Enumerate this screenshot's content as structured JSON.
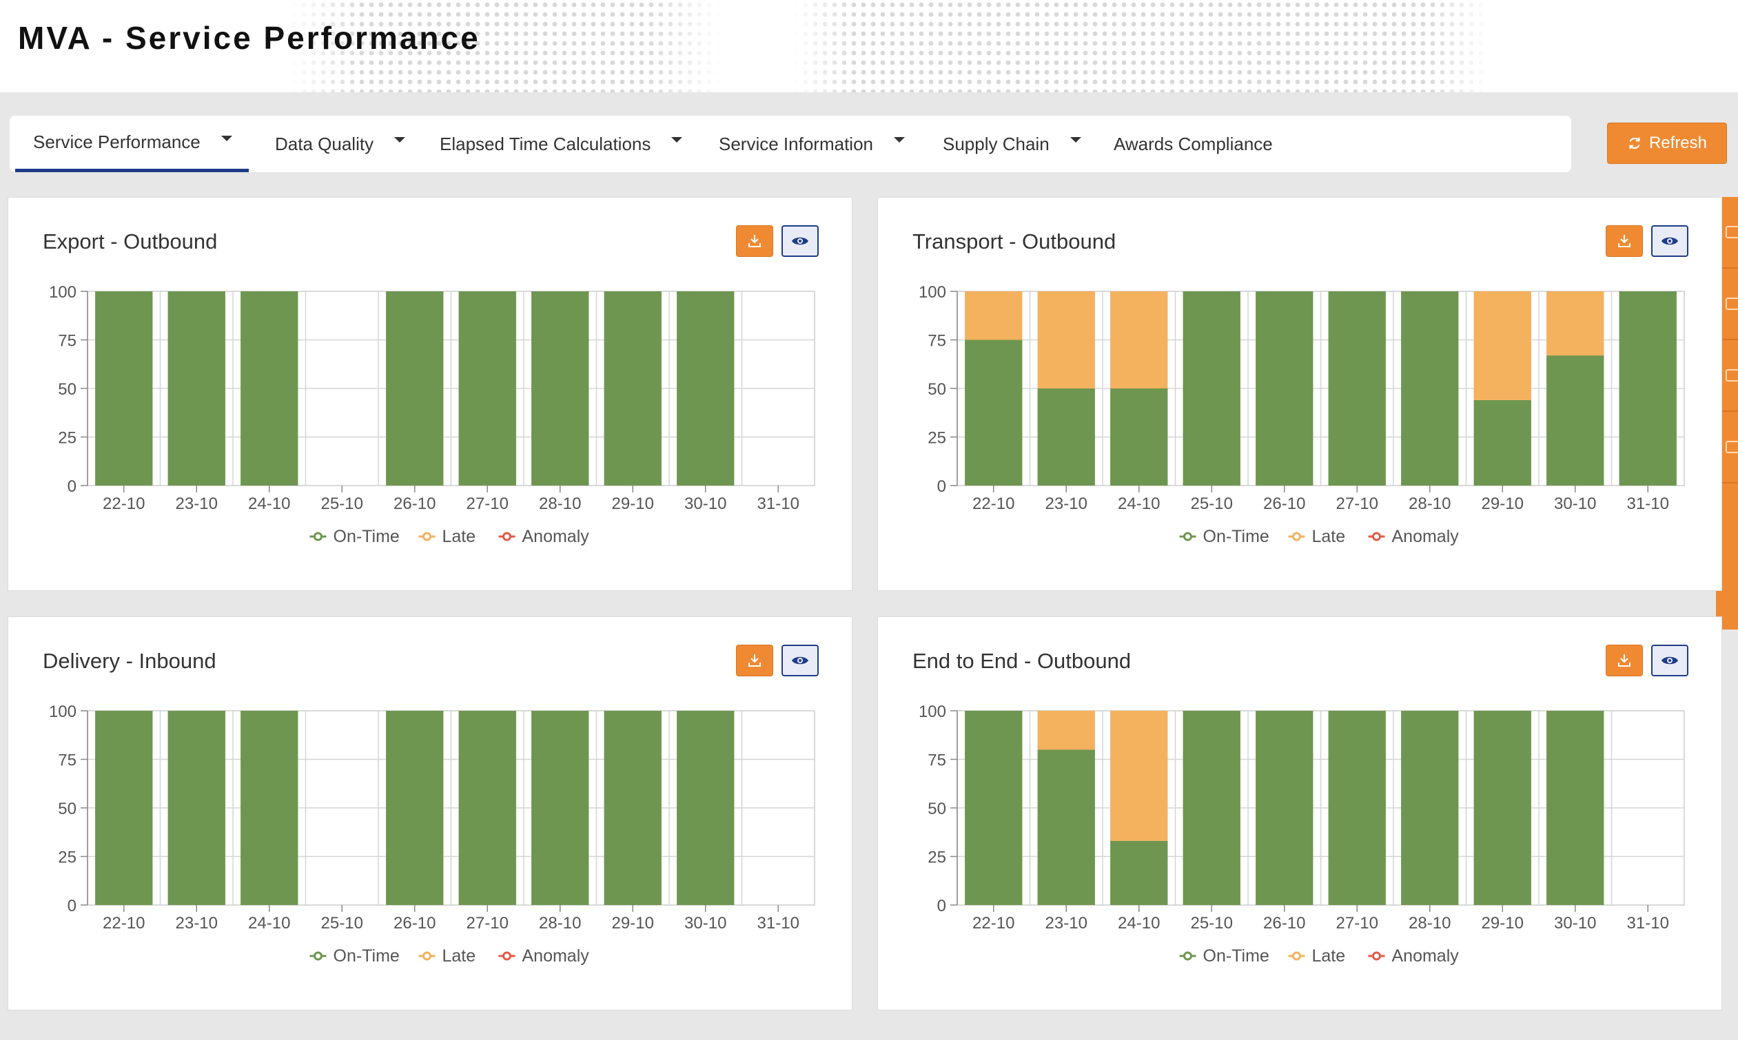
{
  "page": {
    "title": "MVA - Service Performance"
  },
  "nav": {
    "tabs": [
      {
        "label": "Service Performance",
        "dropdown": true,
        "active": true
      },
      {
        "label": "Data Quality",
        "dropdown": true,
        "active": false
      },
      {
        "label": "Elapsed Time Calculations",
        "dropdown": true,
        "active": false
      },
      {
        "label": "Service Information",
        "dropdown": true,
        "active": false
      },
      {
        "label": "Supply Chain",
        "dropdown": true,
        "active": false
      },
      {
        "label": "Awards Compliance",
        "dropdown": false,
        "active": false
      }
    ],
    "refresh_label": "Refresh"
  },
  "colors": {
    "on_time": "#6e9650",
    "late": "#f4b15e",
    "anomaly": "#e05a48",
    "accent": "#ef8a33",
    "nav_active": "#1f3c88"
  },
  "icons": {
    "download": "download-icon",
    "view": "eye-icon",
    "refresh": "refresh-icon",
    "side": [
      "filter-icon",
      "book-icon",
      "box-icon",
      "handshake-icon"
    ]
  },
  "legend": [
    "On-Time",
    "Late",
    "Anomaly"
  ],
  "chart_data": [
    {
      "type": "bar",
      "title": "Export - Outbound",
      "stacked": true,
      "categories": [
        "22-10",
        "23-10",
        "24-10",
        "25-10",
        "26-10",
        "27-10",
        "28-10",
        "29-10",
        "30-10",
        "31-10"
      ],
      "series": [
        {
          "name": "On-Time",
          "values": [
            100,
            100,
            100,
            0,
            100,
            100,
            100,
            100,
            100,
            0
          ]
        },
        {
          "name": "Late",
          "values": [
            0,
            0,
            0,
            0,
            0,
            0,
            0,
            0,
            0,
            0
          ]
        },
        {
          "name": "Anomaly",
          "values": [
            0,
            0,
            0,
            0,
            0,
            0,
            0,
            0,
            0,
            0
          ]
        }
      ],
      "yticks": [
        "0",
        "25",
        "50",
        "75",
        "100"
      ],
      "ylim": [
        0,
        100
      ],
      "grid": true,
      "legend_position": "bottom"
    },
    {
      "type": "bar",
      "title": "Transport - Outbound",
      "stacked": true,
      "categories": [
        "22-10",
        "23-10",
        "24-10",
        "25-10",
        "26-10",
        "27-10",
        "28-10",
        "29-10",
        "30-10",
        "31-10"
      ],
      "series": [
        {
          "name": "On-Time",
          "values": [
            75,
            50,
            50,
            100,
            100,
            100,
            100,
            44,
            67,
            100
          ]
        },
        {
          "name": "Late",
          "values": [
            25,
            50,
            50,
            0,
            0,
            0,
            0,
            56,
            33,
            0
          ]
        },
        {
          "name": "Anomaly",
          "values": [
            0,
            0,
            0,
            0,
            0,
            0,
            0,
            0,
            0,
            0
          ]
        }
      ],
      "yticks": [
        "0",
        "25",
        "50",
        "75",
        "100"
      ],
      "ylim": [
        0,
        100
      ],
      "grid": true,
      "legend_position": "bottom"
    },
    {
      "type": "bar",
      "title": "Delivery - Inbound",
      "stacked": true,
      "categories": [
        "22-10",
        "23-10",
        "24-10",
        "25-10",
        "26-10",
        "27-10",
        "28-10",
        "29-10",
        "30-10",
        "31-10"
      ],
      "series": [
        {
          "name": "On-Time",
          "values": [
            100,
            100,
            100,
            0,
            100,
            100,
            100,
            100,
            100,
            0
          ]
        },
        {
          "name": "Late",
          "values": [
            0,
            0,
            0,
            0,
            0,
            0,
            0,
            0,
            0,
            0
          ]
        },
        {
          "name": "Anomaly",
          "values": [
            0,
            0,
            0,
            0,
            0,
            0,
            0,
            0,
            0,
            0
          ]
        }
      ],
      "yticks": [
        "0",
        "25",
        "50",
        "75",
        "100"
      ],
      "ylim": [
        0,
        100
      ],
      "grid": true,
      "legend_position": "bottom"
    },
    {
      "type": "bar",
      "title": "End to End - Outbound",
      "stacked": true,
      "categories": [
        "22-10",
        "23-10",
        "24-10",
        "25-10",
        "26-10",
        "27-10",
        "28-10",
        "29-10",
        "30-10",
        "31-10"
      ],
      "series": [
        {
          "name": "On-Time",
          "values": [
            100,
            80,
            33,
            100,
            100,
            100,
            100,
            100,
            100,
            0
          ]
        },
        {
          "name": "Late",
          "values": [
            0,
            20,
            67,
            0,
            0,
            0,
            0,
            0,
            0,
            0
          ]
        },
        {
          "name": "Anomaly",
          "values": [
            0,
            0,
            0,
            0,
            0,
            0,
            0,
            0,
            0,
            0
          ]
        }
      ],
      "yticks": [
        "0",
        "25",
        "50",
        "75",
        "100"
      ],
      "ylim": [
        0,
        100
      ],
      "grid": true,
      "legend_position": "bottom"
    }
  ]
}
